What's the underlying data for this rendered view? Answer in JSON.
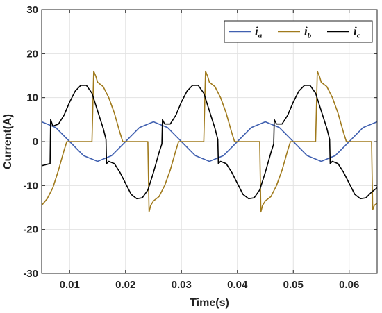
{
  "chart_data": {
    "type": "line",
    "xlabel": "Time(s)",
    "ylabel": "Current(A)",
    "xlim": [
      0.005,
      0.065
    ],
    "ylim": [
      -30,
      30
    ],
    "xticks": [
      0.01,
      0.02,
      0.03,
      0.04,
      0.05,
      0.06
    ],
    "xtick_labels": [
      "0.01",
      "0.02",
      "0.03",
      "0.04",
      "0.05",
      "0.06"
    ],
    "yticks": [
      -30,
      -20,
      -10,
      0,
      10,
      20,
      30
    ],
    "ytick_labels": [
      "-30",
      "-20",
      "-10",
      "0",
      "10",
      "20",
      "30"
    ],
    "grid": true,
    "legend_position": "top-right",
    "series": [
      {
        "name": "i_a",
        "legend_main": "i",
        "legend_sub": "a",
        "color": "#4060b0",
        "x": [
          0.005,
          0.0075,
          0.01,
          0.0125,
          0.015,
          0.0175,
          0.02,
          0.0225,
          0.025,
          0.0275,
          0.03,
          0.0325,
          0.035,
          0.0375,
          0.04,
          0.0425,
          0.045,
          0.0475,
          0.05,
          0.0525,
          0.055,
          0.0575,
          0.06,
          0.0625,
          0.065
        ],
        "y": [
          4.5,
          3.2,
          0.0,
          -3.2,
          -4.5,
          -3.2,
          0.0,
          3.2,
          4.5,
          3.2,
          0.0,
          -3.2,
          -4.5,
          -3.2,
          0.0,
          3.2,
          4.5,
          3.2,
          0.0,
          -3.2,
          -4.5,
          -3.2,
          0.0,
          3.2,
          4.5
        ]
      },
      {
        "name": "i_b",
        "legend_main": "i",
        "legend_sub": "b",
        "color": "#a07a1c",
        "x": [
          0.005,
          0.006,
          0.007,
          0.008,
          0.009,
          0.0095,
          0.014,
          0.0143,
          0.0147,
          0.015,
          0.016,
          0.017,
          0.018,
          0.019,
          0.0195,
          0.024,
          0.0242,
          0.0245,
          0.025,
          0.026,
          0.027,
          0.028,
          0.029,
          0.0295,
          0.034,
          0.0343,
          0.0347,
          0.035,
          0.036,
          0.037,
          0.038,
          0.039,
          0.0395,
          0.044,
          0.0442,
          0.0445,
          0.045,
          0.046,
          0.047,
          0.048,
          0.049,
          0.0495,
          0.054,
          0.0543,
          0.0547,
          0.055,
          0.056,
          0.057,
          0.058,
          0.059,
          0.0595,
          0.064,
          0.0642,
          0.0645,
          0.065
        ],
        "y": [
          -14.5,
          -13.0,
          -10.5,
          -6.5,
          -2.0,
          0.0,
          0.0,
          16.0,
          14.8,
          13.5,
          12.5,
          10.0,
          6.5,
          2.0,
          0.0,
          0.0,
          -16.0,
          -14.5,
          -13.5,
          -12.5,
          -10.0,
          -6.5,
          -2.0,
          0.0,
          0.0,
          16.0,
          14.8,
          13.5,
          12.5,
          10.0,
          6.5,
          2.0,
          0.0,
          0.0,
          -16.0,
          -14.5,
          -13.5,
          -12.5,
          -10.0,
          -6.5,
          -2.0,
          0.0,
          0.0,
          16.0,
          14.8,
          13.5,
          12.5,
          10.0,
          6.5,
          2.0,
          0.0,
          0.0,
          -15.5,
          -14.5,
          -14.0
        ]
      },
      {
        "name": "i_c",
        "legend_main": "i",
        "legend_sub": "c",
        "color": "#000000",
        "x": [
          0.005,
          0.0065,
          0.0066,
          0.007,
          0.008,
          0.009,
          0.01,
          0.011,
          0.012,
          0.013,
          0.014,
          0.015,
          0.016,
          0.0165,
          0.0166,
          0.017,
          0.018,
          0.019,
          0.02,
          0.021,
          0.022,
          0.023,
          0.024,
          0.025,
          0.026,
          0.0265,
          0.0266,
          0.027,
          0.028,
          0.029,
          0.03,
          0.031,
          0.032,
          0.033,
          0.034,
          0.035,
          0.036,
          0.0365,
          0.0366,
          0.037,
          0.038,
          0.039,
          0.04,
          0.041,
          0.042,
          0.043,
          0.044,
          0.045,
          0.046,
          0.0465,
          0.0466,
          0.047,
          0.048,
          0.049,
          0.05,
          0.051,
          0.052,
          0.053,
          0.054,
          0.055,
          0.056,
          0.0565,
          0.0566,
          0.057,
          0.058,
          0.059,
          0.06,
          0.061,
          0.062,
          0.063,
          0.064,
          0.065
        ],
        "y": [
          -5.5,
          -5.0,
          5.0,
          3.5,
          4.0,
          6.0,
          9.0,
          11.5,
          12.8,
          12.8,
          11.0,
          7.0,
          3.0,
          0.5,
          -5.0,
          -4.5,
          -5.0,
          -7.0,
          -9.5,
          -12.0,
          -13.0,
          -12.8,
          -11.0,
          -7.0,
          -2.5,
          -0.5,
          5.0,
          4.0,
          4.0,
          6.0,
          9.0,
          11.5,
          12.8,
          12.8,
          11.0,
          7.0,
          3.0,
          0.5,
          -5.0,
          -4.5,
          -5.0,
          -7.0,
          -9.5,
          -12.0,
          -13.0,
          -12.8,
          -11.0,
          -7.0,
          -2.5,
          -0.5,
          5.0,
          4.0,
          4.0,
          6.0,
          9.0,
          11.5,
          12.8,
          12.8,
          11.0,
          7.0,
          3.0,
          0.5,
          -5.0,
          -4.5,
          -5.0,
          -7.0,
          -9.5,
          -12.0,
          -13.0,
          -12.8,
          -11.5,
          -10.5
        ]
      }
    ]
  }
}
